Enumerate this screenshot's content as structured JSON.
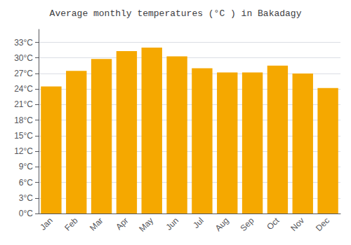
{
  "chart_data": {
    "type": "bar",
    "title": "Average monthly temperatures (°C ) in Bakadagy",
    "categories": [
      "Jan",
      "Feb",
      "Mar",
      "Apr",
      "May",
      "Jun",
      "Jul",
      "Aug",
      "Sep",
      "Oct",
      "Nov",
      "Dec"
    ],
    "values": [
      24.5,
      27.5,
      29.8,
      31.3,
      32.0,
      30.3,
      28.0,
      27.2,
      27.2,
      28.5,
      27.0,
      24.2
    ],
    "color": "#F5A800",
    "ylim": [
      0,
      35.5
    ],
    "yticks": [
      {
        "value": 0,
        "label": "0°C"
      },
      {
        "value": 3,
        "label": "3°C"
      },
      {
        "value": 6,
        "label": "6°C"
      },
      {
        "value": 9,
        "label": "9°C"
      },
      {
        "value": 12,
        "label": "12°C"
      },
      {
        "value": 15,
        "label": "15°C"
      },
      {
        "value": 18,
        "label": "18°C"
      },
      {
        "value": 21,
        "label": "21°C"
      },
      {
        "value": 24,
        "label": "24°C"
      },
      {
        "value": 27,
        "label": "27°C"
      },
      {
        "value": 30,
        "label": "30°C"
      },
      {
        "value": 33,
        "label": "33°C"
      }
    ],
    "grid": true
  }
}
